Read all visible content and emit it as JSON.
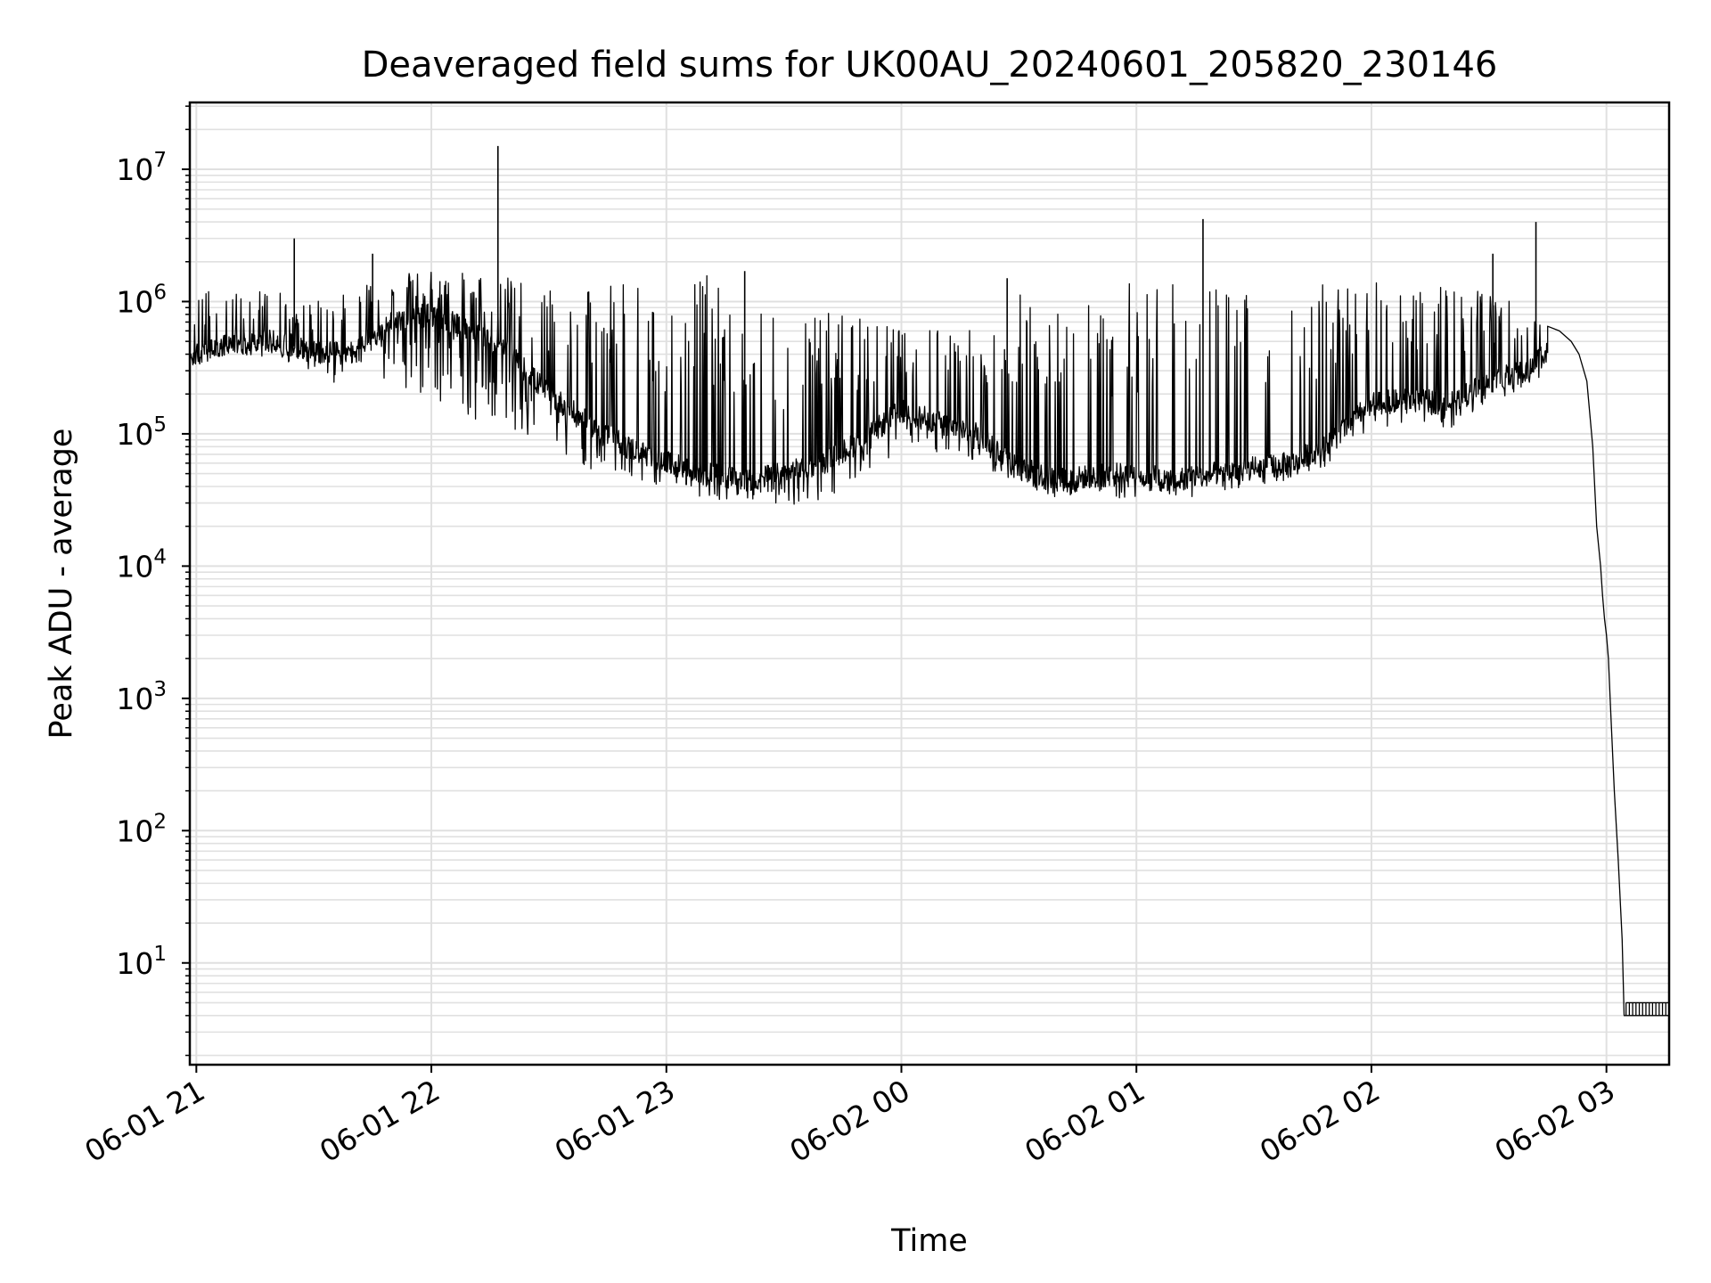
{
  "chart_data": {
    "type": "line",
    "title": "Deaveraged field sums for UK00AU_20240601_205820_230146",
    "xlabel": "Time",
    "ylabel": "Peak ADU - average",
    "yscale": "log",
    "grid": true,
    "line_color": "#000000",
    "grid_color": "#e0e0e0",
    "xlim": [
      "2024-06-01T20:58:20",
      "2024-06-02T03:16:00"
    ],
    "ylim": [
      1.7,
      32000000
    ],
    "x_ticks": [
      {
        "value": "2024-06-01T21:00:00",
        "label": "06-01 21"
      },
      {
        "value": "2024-06-01T22:00:00",
        "label": "06-01 22"
      },
      {
        "value": "2024-06-01T23:00:00",
        "label": "06-01 23"
      },
      {
        "value": "2024-06-02T00:00:00",
        "label": "06-02 00"
      },
      {
        "value": "2024-06-02T01:00:00",
        "label": "06-02 01"
      },
      {
        "value": "2024-06-02T02:00:00",
        "label": "06-02 02"
      },
      {
        "value": "2024-06-02T03:00:00",
        "label": "06-02 03"
      }
    ],
    "y_ticks": [
      {
        "value": 10,
        "base": "10",
        "exp": "1"
      },
      {
        "value": 100,
        "base": "10",
        "exp": "2"
      },
      {
        "value": 1000,
        "base": "10",
        "exp": "3"
      },
      {
        "value": 10000,
        "base": "10",
        "exp": "4"
      },
      {
        "value": 100000,
        "base": "10",
        "exp": "5"
      },
      {
        "value": 1000000,
        "base": "10",
        "exp": "6"
      },
      {
        "value": 10000000,
        "base": "10",
        "exp": "7"
      }
    ],
    "series": [
      {
        "envelope": {
          "x": [
            "2024-06-01T20:58:20",
            "2024-06-01T21:10:00",
            "2024-06-01T21:20:00",
            "2024-06-01T21:30:00",
            "2024-06-01T21:40:00",
            "2024-06-01T21:50:00",
            "2024-06-01T22:00:00",
            "2024-06-01T22:10:00",
            "2024-06-01T22:20:00",
            "2024-06-01T22:30:00",
            "2024-06-01T22:40:00",
            "2024-06-01T22:50:00",
            "2024-06-01T23:00:00",
            "2024-06-01T23:10:00",
            "2024-06-01T23:20:00",
            "2024-06-01T23:30:00",
            "2024-06-01T23:40:00",
            "2024-06-01T23:50:00",
            "2024-06-02T00:00:00",
            "2024-06-02T00:10:00",
            "2024-06-02T00:20:00",
            "2024-06-02T00:30:00",
            "2024-06-02T00:40:00",
            "2024-06-02T00:50:00",
            "2024-06-02T01:00:00",
            "2024-06-02T01:10:00",
            "2024-06-02T01:20:00",
            "2024-06-02T01:30:00",
            "2024-06-02T01:40:00",
            "2024-06-02T01:50:00",
            "2024-06-02T02:00:00",
            "2024-06-02T02:10:00",
            "2024-06-02T02:20:00",
            "2024-06-02T02:30:00",
            "2024-06-02T02:40:00",
            "2024-06-02T02:45:00",
            "2024-06-02T02:50:00",
            "2024-06-02T02:55:00"
          ],
          "base": [
            380000,
            480000,
            500000,
            420000,
            400000,
            700000,
            800000,
            600000,
            400000,
            200000,
            120000,
            80000,
            60000,
            50000,
            45000,
            50000,
            60000,
            90000,
            150000,
            120000,
            100000,
            55000,
            45000,
            48000,
            50000,
            45000,
            50000,
            55000,
            60000,
            90000,
            170000,
            180000,
            170000,
            250000,
            300000,
            450000,
            600000,
            400000
          ],
          "low": [
            330000,
            400000,
            380000,
            300000,
            180000,
            250000,
            180000,
            130000,
            110000,
            80000,
            55000,
            45000,
            40000,
            32000,
            30000,
            28000,
            32000,
            40000,
            80000,
            70000,
            60000,
            38000,
            32000,
            35000,
            30000,
            32000,
            35000,
            40000,
            45000,
            60000,
            110000,
            120000,
            110000,
            170000,
            230000,
            300000,
            450000,
            300000
          ],
          "high": [
            1200000,
            1200000,
            1200000,
            1000000,
            1300000,
            1600000,
            1700000,
            1700000,
            1500000,
            1200000,
            1200000,
            1500000,
            1300000,
            1600000,
            1000000,
            800000,
            900000,
            800000,
            600000,
            700000,
            600000,
            1300000,
            1200000,
            1100000,
            1600000,
            1700000,
            1300000,
            1500000,
            1600000,
            1500000,
            1400000,
            1500000,
            1300000,
            1200000,
            1000000,
            1000000,
            800000,
            600000
          ]
        },
        "spikes": [
          {
            "x": "2024-06-01T21:25:00",
            "y": 3000000
          },
          {
            "x": "2024-06-01T21:45:00",
            "y": 2300000
          },
          {
            "x": "2024-06-01T22:17:00",
            "y": 15000000
          },
          {
            "x": "2024-06-02T01:17:00",
            "y": 4200000
          },
          {
            "x": "2024-06-02T02:31:00",
            "y": 2300000
          },
          {
            "x": "2024-06-02T02:42:00",
            "y": 4000000
          },
          {
            "x": "2024-06-02T00:27:00",
            "y": 1500000
          },
          {
            "x": "2024-06-01T23:20:00",
            "y": 1700000
          }
        ],
        "tail": {
          "x": [
            "2024-06-02T02:45:00",
            "2024-06-02T02:48:00",
            "2024-06-02T02:51:00",
            "2024-06-02T02:53:00",
            "2024-06-02T02:55:00",
            "2024-06-02T02:56:30",
            "2024-06-02T02:57:30",
            "2024-06-02T02:58:30",
            "2024-06-02T02:59:00",
            "2024-06-02T02:59:30",
            "2024-06-02T03:00:00",
            "2024-06-02T03:00:30",
            "2024-06-02T03:01:00",
            "2024-06-02T03:02:00",
            "2024-06-02T03:03:00",
            "2024-06-02T03:04:00",
            "2024-06-02T03:04:30",
            "2024-06-02T03:05:00",
            "2024-06-02T03:16:00"
          ],
          "y": [
            650000,
            600000,
            500000,
            400000,
            250000,
            80000,
            20000,
            10000,
            6000,
            4000,
            3000,
            2000,
            900,
            200,
            60,
            15,
            4,
            4,
            4
          ]
        },
        "floor_ticks": {
          "from": "2024-06-02T03:05:00",
          "to": "2024-06-02T03:16:00",
          "count": 14,
          "low": 4,
          "high": 5
        }
      }
    ]
  }
}
